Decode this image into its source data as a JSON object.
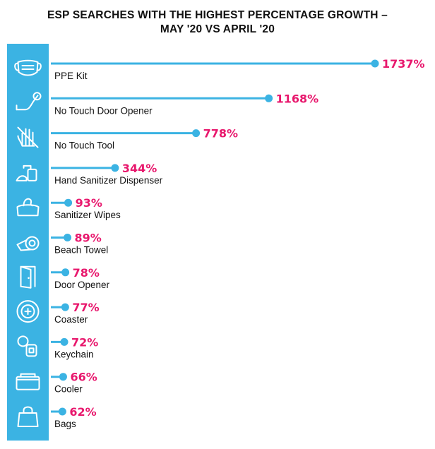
{
  "title_line1": "ESP SEARCHES WITH THE HIGHEST PERCENTAGE GROWTH –",
  "title_line2": "MAY '20 VS APRIL '20",
  "colors": {
    "strip": "#3bb3e3",
    "line": "#3bb3e3",
    "dot": "#3bb3e3",
    "value": "#e8186d",
    "label": "#111111"
  },
  "chart_data": {
    "type": "bar",
    "title": "ESP SEARCHES WITH THE HIGHEST PERCENTAGE GROWTH – MAY '20 VS APRIL '20",
    "orientation": "horizontal",
    "value_suffix": "%",
    "categories": [
      "PPE Kit",
      "No Touch Door Opener",
      "No Touch Tool",
      "Hand Sanitizer Dispenser",
      "Sanitizer Wipes",
      "Beach Towel",
      "Door Opener",
      "Coaster",
      "Keychain",
      "Cooler",
      "Bags"
    ],
    "values": [
      1737,
      1168,
      778,
      344,
      93,
      89,
      78,
      77,
      72,
      66,
      62
    ],
    "value_labels": [
      "1737%",
      "1168%",
      "778%",
      "344%",
      "93%",
      "89%",
      "78%",
      "77%",
      "72%",
      "66%",
      "62%"
    ],
    "icons": [
      "face-mask-icon",
      "door-opener-hook-icon",
      "no-touch-hand-icon",
      "sanitizer-dispenser-icon",
      "wipes-pack-icon",
      "rolled-towel-icon",
      "door-icon",
      "coaster-icon",
      "keychain-icon",
      "cooler-icon",
      "shopping-bag-icon"
    ],
    "xlim": [
      0,
      1737
    ],
    "grid": false,
    "legend": "none"
  }
}
